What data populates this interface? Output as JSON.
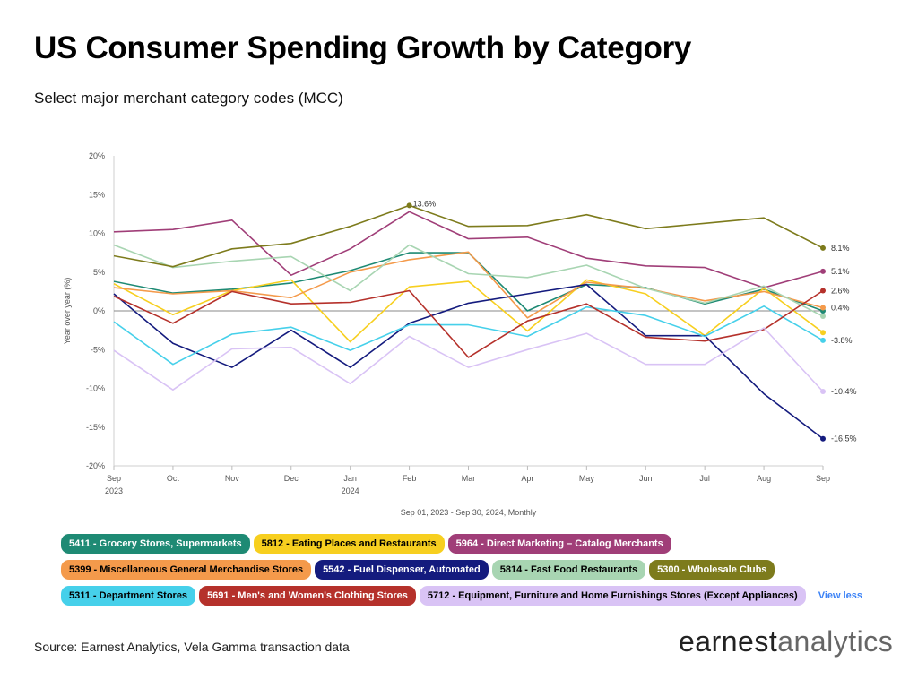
{
  "header": {
    "title": "US Consumer Spending Growth by Category",
    "subtitle": "Select major merchant category codes (MCC)"
  },
  "footer": {
    "source": "Source: Earnest Analytics, Vela Gamma transaction data",
    "logo_part1": "earnest",
    "logo_part2": "analytics"
  },
  "legend": {
    "view_less": "View less"
  },
  "chart_data": {
    "type": "line",
    "ylabel": "Year over year (%)",
    "xlabel": "Sep 01, 2023 - Sep 30, 2024, Monthly",
    "ylim": [
      -20,
      20
    ],
    "yticks": [
      20,
      15,
      10,
      5,
      0,
      -5,
      -10,
      -15,
      -20
    ],
    "ytick_labels": [
      "20%",
      "15%",
      "10%",
      "5%",
      "0%",
      "-5%",
      "-10%",
      "-15%",
      "-20%"
    ],
    "categories": [
      "Sep",
      "Oct",
      "Nov",
      "Dec",
      "Jan",
      "Feb",
      "Mar",
      "Apr",
      "May",
      "Jun",
      "Jul",
      "Aug",
      "Sep"
    ],
    "category_sublabels": [
      "2023",
      "",
      "",
      "",
      "2024",
      "",
      "",
      "",
      "",
      "",
      "",
      "",
      ""
    ],
    "grid": false,
    "peak_annotation": {
      "series": "5300 - Wholesale Clubs",
      "index": 5,
      "label": "13.6%"
    },
    "series": [
      {
        "name": "5411 - Grocery Stores, Supermarkets",
        "color": "#1e8a74",
        "text_color": "#ffffff",
        "values": [
          3.8,
          2.3,
          2.8,
          3.6,
          5.2,
          7.5,
          7.5,
          0.0,
          3.4,
          3.0,
          0.9,
          2.8,
          0.0
        ]
      },
      {
        "name": "5812 - Eating Places and Restaurants",
        "color": "#f7cf1f",
        "text_color": "#000000",
        "values": [
          3.5,
          -0.5,
          2.6,
          4.0,
          -4.0,
          3.1,
          3.8,
          -2.6,
          4.0,
          2.2,
          -3.2,
          2.9,
          -2.8
        ]
      },
      {
        "name": "5964 - Direct Marketing – Catalog Merchants",
        "color": "#a03e78",
        "text_color": "#ffffff",
        "values": [
          10.2,
          10.5,
          11.7,
          4.6,
          8.0,
          12.8,
          9.3,
          9.5,
          6.8,
          5.8,
          5.6,
          3.0,
          5.1
        ],
        "end_label": "5.1%"
      },
      {
        "name": "5399 - Miscellaneous General Merchandise Stores",
        "color": "#f49a4b",
        "text_color": "#000000",
        "values": [
          3.0,
          2.2,
          2.6,
          1.7,
          5.0,
          6.6,
          7.6,
          -0.9,
          3.7,
          2.9,
          1.3,
          2.5,
          0.4
        ],
        "end_label": "0.4%"
      },
      {
        "name": "5542 - Fuel Dispenser, Automated",
        "color": "#141b7e",
        "text_color": "#ffffff",
        "values": [
          2.2,
          -4.2,
          -7.3,
          -2.5,
          -7.3,
          -1.6,
          1.0,
          2.2,
          3.4,
          -3.2,
          -3.2,
          -10.7,
          -16.5
        ],
        "end_label": "-16.5%"
      },
      {
        "name": "5814 - Fast Food Restaurants",
        "color": "#a8d5b2",
        "text_color": "#000000",
        "values": [
          8.5,
          5.6,
          6.4,
          7.0,
          2.6,
          8.5,
          4.8,
          4.3,
          5.9,
          2.9,
          1.0,
          3.2,
          -0.7
        ]
      },
      {
        "name": "5300 - Wholesale Clubs",
        "color": "#7d7b1c",
        "text_color": "#ffffff",
        "values": [
          7.1,
          5.7,
          8.0,
          8.7,
          10.9,
          13.6,
          10.9,
          11.0,
          12.4,
          10.6,
          11.3,
          12.0,
          8.1
        ],
        "end_label": "8.1%"
      },
      {
        "name": "5311 - Department Stores",
        "color": "#46d0ea",
        "text_color": "#000000",
        "values": [
          -1.4,
          -6.9,
          -3.0,
          -2.1,
          -5.1,
          -1.8,
          -1.8,
          -3.3,
          0.5,
          -0.6,
          -3.3,
          0.6,
          -3.8
        ],
        "end_label": "-3.8%"
      },
      {
        "name": "5691 - Men's and Women's Clothing Stores",
        "color": "#b5312b",
        "text_color": "#ffffff",
        "values": [
          1.9,
          -1.6,
          2.5,
          0.9,
          1.1,
          2.6,
          -6.0,
          -1.3,
          0.9,
          -3.4,
          -3.9,
          -2.4,
          2.6
        ],
        "end_label": "2.6%"
      },
      {
        "name": "5712 - Equipment, Furniture and Home Furnishings Stores (Except Appliances)",
        "color": "#d9c3f5",
        "text_color": "#000000",
        "values": [
          -5.1,
          -10.2,
          -4.9,
          -4.7,
          -9.4,
          -3.3,
          -7.3,
          -5.0,
          -2.9,
          -6.9,
          -6.9,
          -2.2,
          -10.4
        ],
        "end_label": "-10.4%"
      }
    ]
  }
}
